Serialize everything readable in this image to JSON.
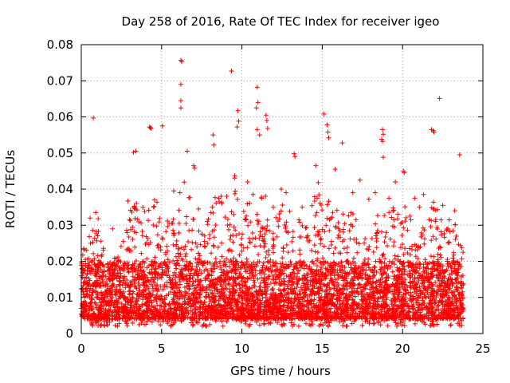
{
  "chart_data": {
    "type": "scatter",
    "title": "Day 258 of 2016, Rate Of TEC Index for receiver igeo",
    "xlabel": "GPS time / hours",
    "ylabel": "ROTI / TECUs",
    "xlim": [
      0,
      25
    ],
    "ylim": [
      0,
      0.08
    ],
    "x_ticks": [
      0,
      5,
      10,
      15,
      20,
      25
    ],
    "y_ticks": [
      0,
      0.01,
      0.02,
      0.03,
      0.04,
      0.05,
      0.06,
      0.07,
      0.08
    ],
    "x_tick_labels": [
      "0",
      "5",
      "10",
      "15",
      "20",
      "25"
    ],
    "y_tick_labels": [
      "0",
      "0.01",
      "0.02",
      "0.03",
      "0.04",
      "0.05",
      "0.06",
      "0.07",
      "0.08"
    ],
    "grid": true,
    "marker": "+",
    "color": "#ff0000",
    "series": [
      {
        "name": "ROTI",
        "points": [
          [
            0.75,
            0.0597
          ],
          [
            6.2,
            0.0757
          ],
          [
            6.25,
            0.0753
          ],
          [
            6.2,
            0.069
          ],
          [
            6.2,
            0.0645
          ],
          [
            6.2,
            0.0625
          ],
          [
            9.35,
            0.0727
          ],
          [
            10.95,
            0.0682
          ],
          [
            11.0,
            0.064
          ],
          [
            10.9,
            0.0625
          ],
          [
            10.95,
            0.0565
          ],
          [
            11.1,
            0.055
          ],
          [
            11.5,
            0.0605
          ],
          [
            11.55,
            0.059
          ],
          [
            11.6,
            0.0568
          ],
          [
            9.75,
            0.0617
          ],
          [
            9.8,
            0.0588
          ],
          [
            9.7,
            0.0572
          ],
          [
            15.1,
            0.0608
          ],
          [
            15.3,
            0.0578
          ],
          [
            15.35,
            0.0558
          ],
          [
            15.4,
            0.0542
          ],
          [
            22.3,
            0.0651
          ],
          [
            21.8,
            0.0565
          ],
          [
            21.9,
            0.0562
          ],
          [
            21.95,
            0.0558
          ],
          [
            18.75,
            0.0565
          ],
          [
            18.8,
            0.0552
          ],
          [
            18.7,
            0.0538
          ],
          [
            18.75,
            0.0532
          ],
          [
            18.8,
            0.0488
          ],
          [
            4.25,
            0.0572
          ],
          [
            4.3,
            0.057
          ],
          [
            4.35,
            0.0568
          ],
          [
            5.05,
            0.0575
          ],
          [
            3.25,
            0.0502
          ],
          [
            3.4,
            0.0505
          ],
          [
            16.25,
            0.0528
          ],
          [
            8.2,
            0.055
          ],
          [
            8.25,
            0.0522
          ],
          [
            13.25,
            0.0498
          ],
          [
            13.3,
            0.049
          ],
          [
            23.55,
            0.0495
          ],
          [
            20.05,
            0.045
          ],
          [
            20.1,
            0.0445
          ],
          [
            7.0,
            0.0465
          ],
          [
            7.05,
            0.0458
          ],
          [
            2.9,
            0.0367
          ],
          [
            1.95,
            0.029
          ],
          [
            0.15,
            0.0235
          ],
          [
            0.55,
            0.032
          ],
          [
            0.9,
            0.0335
          ],
          [
            1.05,
            0.0318
          ],
          [
            12.75,
            0.039
          ],
          [
            14.6,
            0.0465
          ],
          [
            14.75,
            0.0418
          ],
          [
            17.35,
            0.0425
          ],
          [
            16.9,
            0.039
          ],
          [
            19.15,
            0.0375
          ],
          [
            20.75,
            0.0375
          ],
          [
            21.3,
            0.0385
          ],
          [
            22.5,
            0.0355
          ],
          [
            23.25,
            0.034
          ],
          [
            5.75,
            0.0395
          ],
          [
            6.6,
            0.0505
          ],
          [
            7.3,
            0.0345
          ],
          [
            8.7,
            0.038
          ],
          [
            9.05,
            0.038
          ],
          [
            10.35,
            0.042
          ],
          [
            11.95,
            0.035
          ],
          [
            12.45,
            0.04
          ],
          [
            13.75,
            0.035
          ],
          [
            15.8,
            0.0455
          ],
          [
            17.9,
            0.0372
          ],
          [
            18.3,
            0.039
          ],
          [
            19.55,
            0.042
          ],
          [
            21.05,
            0.035
          ],
          [
            22.9,
            0.0315
          ]
        ]
      }
    ],
    "density_profile": {
      "description": "Dense band of ROTI samples between 0.002 and ~0.035 TECU/s spanning 0.0 to 23.8 hours",
      "x_range": [
        0.0,
        23.8
      ],
      "baseline_min": 0.002,
      "band_envelope": [
        [
          0.0,
          0.022
        ],
        [
          0.5,
          0.028
        ],
        [
          1.0,
          0.03
        ],
        [
          1.5,
          0.022
        ],
        [
          2.0,
          0.02
        ],
        [
          2.5,
          0.027
        ],
        [
          3.0,
          0.035
        ],
        [
          3.5,
          0.04
        ],
        [
          4.0,
          0.033
        ],
        [
          4.5,
          0.04
        ],
        [
          5.0,
          0.036
        ],
        [
          5.5,
          0.031
        ],
        [
          6.0,
          0.04
        ],
        [
          6.5,
          0.044
        ],
        [
          7.0,
          0.032
        ],
        [
          7.5,
          0.028
        ],
        [
          8.0,
          0.035
        ],
        [
          8.5,
          0.04
        ],
        [
          9.0,
          0.036
        ],
        [
          9.5,
          0.045
        ],
        [
          10.0,
          0.034
        ],
        [
          10.5,
          0.037
        ],
        [
          11.0,
          0.042
        ],
        [
          11.5,
          0.04
        ],
        [
          12.0,
          0.031
        ],
        [
          12.5,
          0.036
        ],
        [
          13.0,
          0.034
        ],
        [
          13.5,
          0.033
        ],
        [
          14.0,
          0.03
        ],
        [
          14.5,
          0.038
        ],
        [
          15.0,
          0.04
        ],
        [
          15.5,
          0.036
        ],
        [
          16.0,
          0.034
        ],
        [
          16.5,
          0.033
        ],
        [
          17.0,
          0.034
        ],
        [
          17.5,
          0.032
        ],
        [
          18.0,
          0.03
        ],
        [
          18.5,
          0.036
        ],
        [
          19.0,
          0.036
        ],
        [
          19.5,
          0.035
        ],
        [
          20.0,
          0.036
        ],
        [
          20.5,
          0.033
        ],
        [
          21.0,
          0.032
        ],
        [
          21.5,
          0.031
        ],
        [
          22.0,
          0.038
        ],
        [
          22.5,
          0.03
        ],
        [
          23.0,
          0.03
        ],
        [
          23.5,
          0.033
        ],
        [
          23.8,
          0.026
        ]
      ]
    }
  }
}
